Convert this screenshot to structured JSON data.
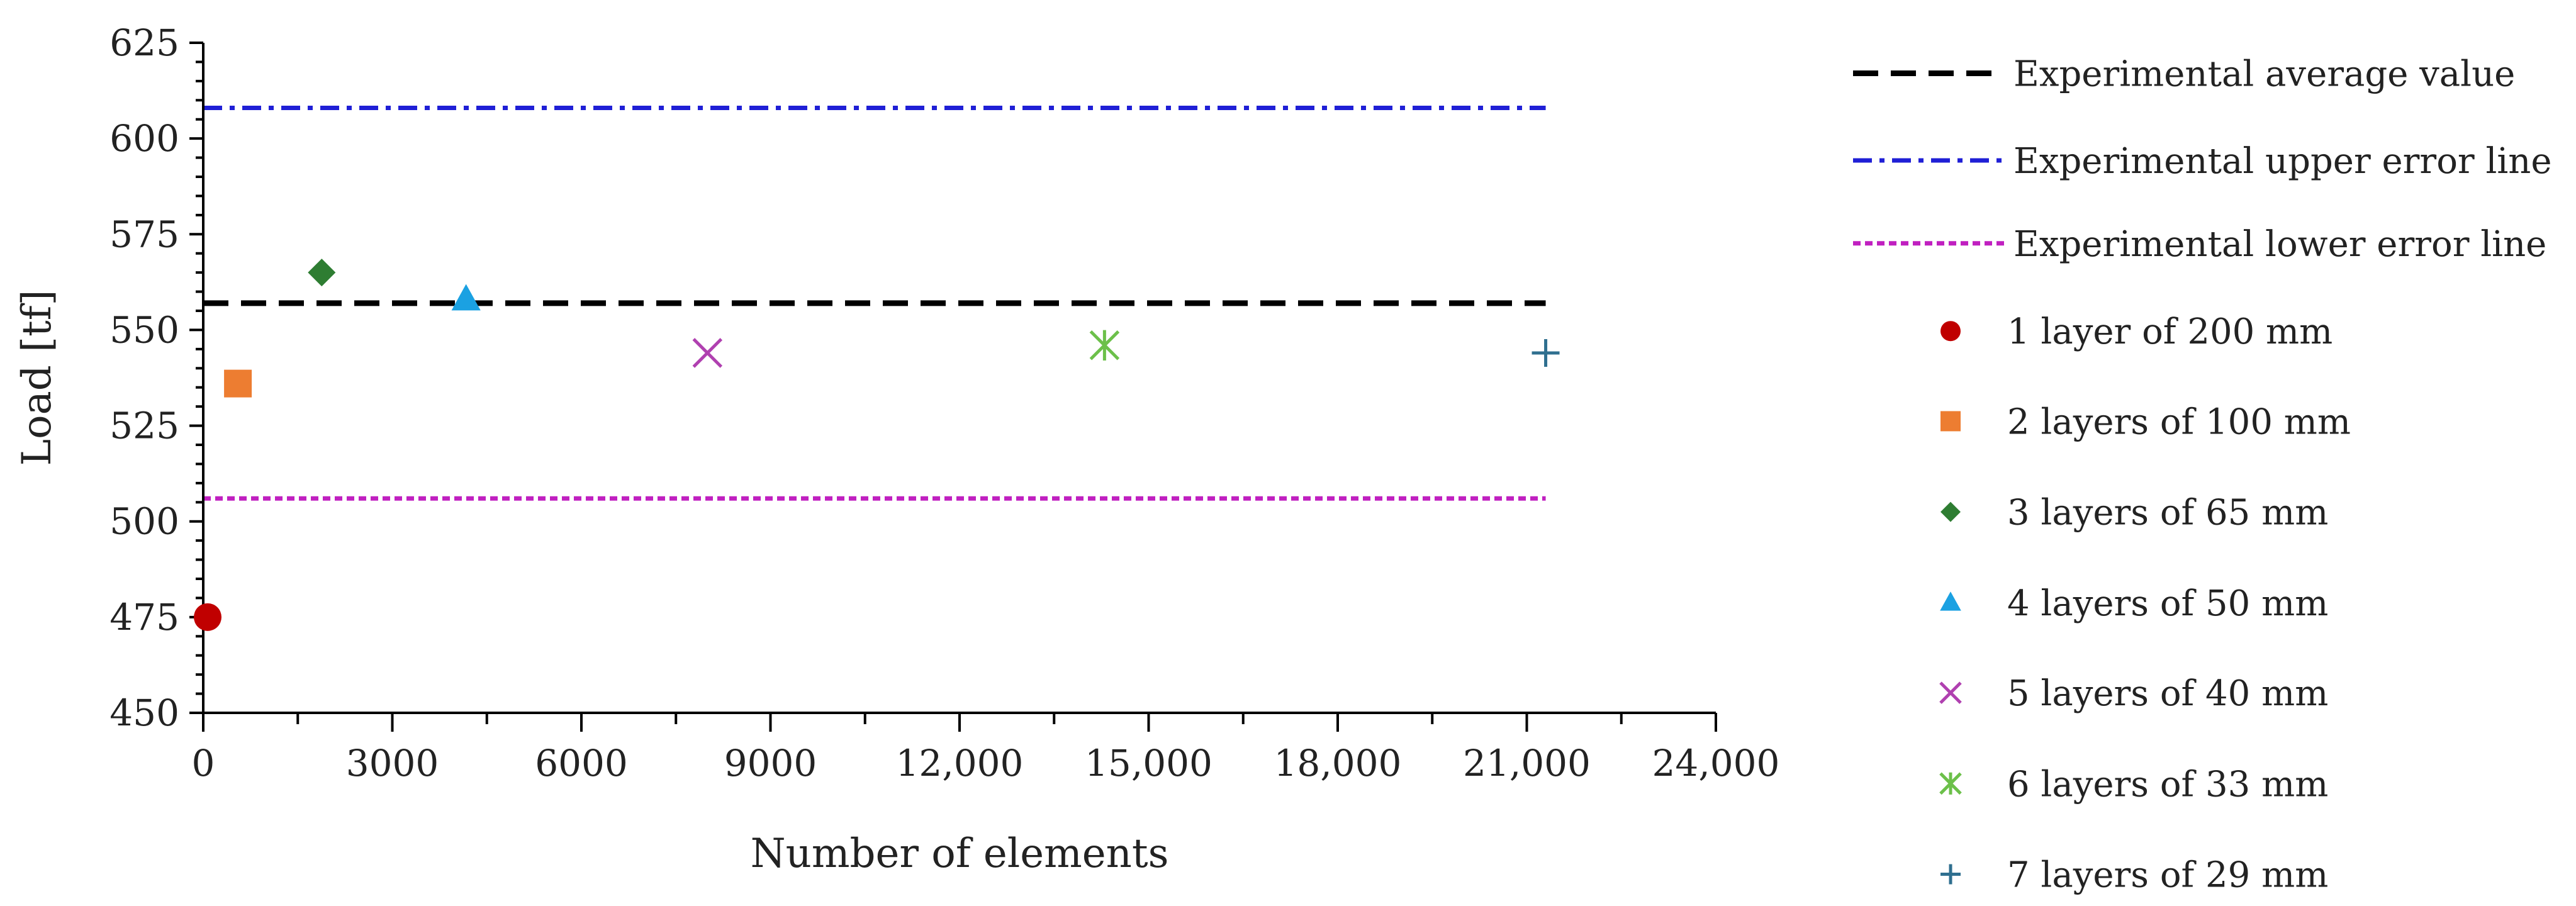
{
  "chart_data": {
    "type": "scatter",
    "xlabel": "Number of elements",
    "ylabel": "Load [tf]",
    "xlim": [
      0,
      24000
    ],
    "ylim": [
      450,
      625
    ],
    "x_ticks": [
      0,
      3000,
      6000,
      9000,
      12000,
      15000,
      18000,
      21000,
      24000
    ],
    "x_tick_labels": [
      "0",
      "3000",
      "6000",
      "9000",
      "12,000",
      "15,000",
      "18,000",
      "21,000",
      "24,000"
    ],
    "y_ticks": [
      450,
      475,
      500,
      525,
      550,
      575,
      600,
      625
    ],
    "y_tick_labels": [
      "450",
      "475",
      "500",
      "525",
      "550",
      "575",
      "600",
      "625"
    ],
    "grid": false,
    "legend_position": "right",
    "reference_lines": [
      {
        "name": "Experimental average value",
        "y": 557,
        "x_range": [
          0,
          21300
        ],
        "color": "#000000",
        "style": "long-dash"
      },
      {
        "name": "Experimental upper error line",
        "y": 608,
        "x_range": [
          0,
          21300
        ],
        "color": "#1f1fd6",
        "style": "dash-dot"
      },
      {
        "name": "Experimental lower error line",
        "y": 506,
        "x_range": [
          0,
          21300
        ],
        "color": "#c020c0",
        "style": "dotted"
      }
    ],
    "series": [
      {
        "name": "1 layer of 200 mm",
        "x": [
          70
        ],
        "y": [
          475
        ],
        "marker": "circle",
        "color": "#c00000"
      },
      {
        "name": "2 layers of 100 mm",
        "x": [
          550
        ],
        "y": [
          536
        ],
        "marker": "square",
        "color": "#ed7d31"
      },
      {
        "name": "3 layers of 65 mm",
        "x": [
          1880
        ],
        "y": [
          565
        ],
        "marker": "diamond",
        "color": "#2e7d32"
      },
      {
        "name": "4 layers of 50 mm",
        "x": [
          4170
        ],
        "y": [
          558
        ],
        "marker": "triangle",
        "color": "#1ba1e2"
      },
      {
        "name": "5 layers of 40 mm",
        "x": [
          8000
        ],
        "y": [
          544
        ],
        "marker": "x",
        "color": "#b040b0"
      },
      {
        "name": "6 layers of 33 mm",
        "x": [
          14300
        ],
        "y": [
          546
        ],
        "marker": "asterisk",
        "color": "#6cc04a"
      },
      {
        "name": "7 layers of 29 mm",
        "x": [
          21300
        ],
        "y": [
          544
        ],
        "marker": "plus",
        "color": "#2f6f8f"
      }
    ]
  }
}
